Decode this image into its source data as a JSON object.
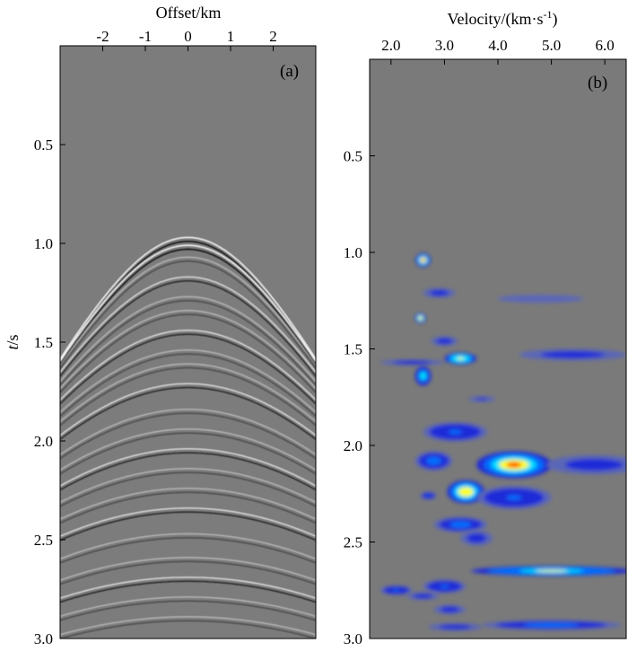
{
  "chart_data": [
    {
      "type": "heatmap",
      "panel_label": "(a)",
      "xlabel": "Offset/km",
      "ylabel_italic": "t",
      "ylabel_rest": "/s",
      "xlim": [
        -3.0,
        3.0
      ],
      "ylim": [
        3.0,
        0.0
      ],
      "x_ticks": [
        {
          "value": -2,
          "label": "-2"
        },
        {
          "value": -1,
          "label": "-1"
        },
        {
          "value": 0,
          "label": "0"
        },
        {
          "value": 1,
          "label": "1"
        },
        {
          "value": 2,
          "label": "2"
        }
      ],
      "y_ticks": [
        {
          "value": 0.5,
          "label": "0.5"
        },
        {
          "value": 1.0,
          "label": "1.0"
        },
        {
          "value": 1.5,
          "label": "1.5"
        },
        {
          "value": 2.0,
          "label": "2.0"
        },
        {
          "value": 2.5,
          "label": "2.5"
        },
        {
          "value": 3.0,
          "label": "3.0"
        }
      ],
      "apex_time_s": 0.98,
      "reflection_times_s": [
        0.98,
        1.02,
        1.08,
        1.18,
        1.28,
        1.35,
        1.45,
        1.55,
        1.62,
        1.72,
        1.85,
        1.95,
        2.05,
        2.15,
        2.25,
        2.35,
        2.48,
        2.6,
        2.7,
        2.8,
        2.9
      ]
    },
    {
      "type": "heatmap",
      "panel_label": "(b)",
      "xlabel_main": "Velocity/(km·s",
      "xlabel_sup": "-1",
      "xlabel_close": ")",
      "xlim": [
        1.6,
        6.4
      ],
      "ylim": [
        3.0,
        0.0
      ],
      "x_ticks": [
        {
          "value": 2.0,
          "label": "2.0"
        },
        {
          "value": 3.0,
          "label": "3.0"
        },
        {
          "value": 4.0,
          "label": "4.0"
        },
        {
          "value": 5.0,
          "label": "5.0"
        },
        {
          "value": 6.0,
          "label": "6.0"
        }
      ],
      "y_ticks": [
        {
          "value": 0.5,
          "label": "0.5"
        },
        {
          "value": 1.0,
          "label": "1.0"
        },
        {
          "value": 1.5,
          "label": "1.5"
        },
        {
          "value": 2.0,
          "label": "2.0"
        },
        {
          "value": 2.5,
          "label": "2.5"
        },
        {
          "value": 3.0,
          "label": "3.0"
        }
      ],
      "colormap": [
        "#7a7a7a",
        "#5a66b8",
        "#1a2ad8",
        "#0070ff",
        "#00e0ff",
        "#ffff00",
        "#ff3000",
        "#b00000"
      ],
      "blobs": [
        {
          "v": 2.6,
          "t": 1.04,
          "dv": 0.14,
          "dt": 0.035,
          "level": 0.8
        },
        {
          "v": 2.55,
          "t": 1.34,
          "dv": 0.1,
          "dt": 0.025,
          "level": 0.75
        },
        {
          "v": 2.9,
          "t": 1.21,
          "dv": 0.3,
          "dt": 0.025,
          "level": 0.3
        },
        {
          "v": 4.8,
          "t": 1.24,
          "dv": 1.0,
          "dt": 0.025,
          "level": 0.15
        },
        {
          "v": 3.0,
          "t": 1.46,
          "dv": 0.25,
          "dt": 0.025,
          "level": 0.35
        },
        {
          "v": 3.3,
          "t": 1.55,
          "dv": 0.3,
          "dt": 0.03,
          "level": 0.7
        },
        {
          "v": 2.4,
          "t": 1.57,
          "dv": 0.6,
          "dt": 0.015,
          "level": 0.3
        },
        {
          "v": 5.4,
          "t": 1.53,
          "dv": 1.0,
          "dt": 0.03,
          "level": 0.35
        },
        {
          "v": 2.6,
          "t": 1.64,
          "dv": 0.15,
          "dt": 0.05,
          "level": 0.6
        },
        {
          "v": 3.7,
          "t": 1.76,
          "dv": 0.25,
          "dt": 0.015,
          "level": 0.25
        },
        {
          "v": 3.2,
          "t": 1.93,
          "dv": 0.6,
          "dt": 0.05,
          "level": 0.4
        },
        {
          "v": 2.8,
          "t": 2.08,
          "dv": 0.35,
          "dt": 0.05,
          "level": 0.45
        },
        {
          "v": 4.3,
          "t": 2.1,
          "dv": 0.7,
          "dt": 0.07,
          "level": 0.8
        },
        {
          "v": 5.8,
          "t": 2.1,
          "dv": 0.9,
          "dt": 0.05,
          "level": 0.35
        },
        {
          "v": 3.4,
          "t": 2.24,
          "dv": 0.35,
          "dt": 0.06,
          "level": 0.75
        },
        {
          "v": 4.3,
          "t": 2.27,
          "dv": 0.7,
          "dt": 0.06,
          "level": 0.4
        },
        {
          "v": 2.7,
          "t": 2.26,
          "dv": 0.15,
          "dt": 0.02,
          "level": 0.4
        },
        {
          "v": 3.3,
          "t": 2.41,
          "dv": 0.5,
          "dt": 0.04,
          "level": 0.45
        },
        {
          "v": 3.6,
          "t": 2.48,
          "dv": 0.3,
          "dt": 0.04,
          "level": 0.35
        },
        {
          "v": 5.0,
          "t": 2.65,
          "dv": 1.5,
          "dt": 0.025,
          "level": 0.65
        },
        {
          "v": 2.1,
          "t": 2.75,
          "dv": 0.3,
          "dt": 0.025,
          "level": 0.4
        },
        {
          "v": 3.0,
          "t": 2.73,
          "dv": 0.4,
          "dt": 0.035,
          "level": 0.4
        },
        {
          "v": 2.6,
          "t": 2.78,
          "dv": 0.3,
          "dt": 0.02,
          "level": 0.3
        },
        {
          "v": 3.1,
          "t": 2.85,
          "dv": 0.3,
          "dt": 0.025,
          "level": 0.35
        },
        {
          "v": 5.0,
          "t": 2.93,
          "dv": 1.3,
          "dt": 0.025,
          "level": 0.45
        },
        {
          "v": 3.2,
          "t": 2.94,
          "dv": 0.5,
          "dt": 0.02,
          "level": 0.3
        }
      ]
    }
  ]
}
